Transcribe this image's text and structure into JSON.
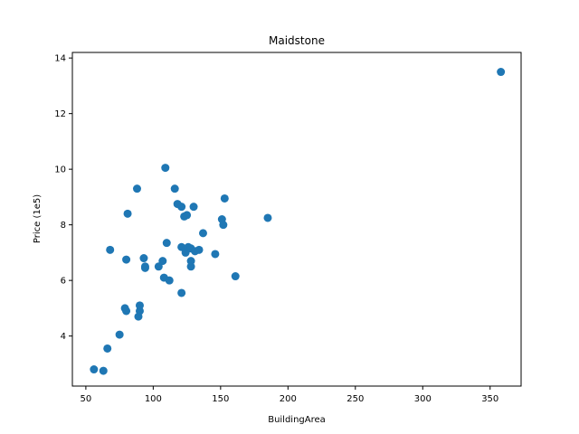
{
  "chart_data": {
    "type": "scatter",
    "title": "Maidstone",
    "xlabel": "BuildingArea",
    "ylabel": "Price (1e5)",
    "xlim": [
      40,
      373
    ],
    "ylim": [
      2.2,
      14.2
    ],
    "xticks": [
      50,
      100,
      150,
      200,
      250,
      300,
      350
    ],
    "yticks": [
      4,
      6,
      8,
      10,
      12,
      14
    ],
    "grid": false,
    "marker_color": "#1f77b4",
    "points": [
      {
        "x": 56,
        "y": 2.8
      },
      {
        "x": 63,
        "y": 2.75
      },
      {
        "x": 66,
        "y": 3.55
      },
      {
        "x": 68,
        "y": 7.1
      },
      {
        "x": 75,
        "y": 4.05
      },
      {
        "x": 79,
        "y": 5.0
      },
      {
        "x": 80,
        "y": 4.9
      },
      {
        "x": 80,
        "y": 6.75
      },
      {
        "x": 81,
        "y": 8.4
      },
      {
        "x": 88,
        "y": 9.3
      },
      {
        "x": 89,
        "y": 4.7
      },
      {
        "x": 90,
        "y": 4.9
      },
      {
        "x": 90,
        "y": 5.1
      },
      {
        "x": 93,
        "y": 6.8
      },
      {
        "x": 94,
        "y": 6.45
      },
      {
        "x": 94,
        "y": 6.5
      },
      {
        "x": 104,
        "y": 6.5
      },
      {
        "x": 107,
        "y": 6.7
      },
      {
        "x": 108,
        "y": 6.1
      },
      {
        "x": 109,
        "y": 10.05
      },
      {
        "x": 110,
        "y": 7.35
      },
      {
        "x": 112,
        "y": 6.0
      },
      {
        "x": 116,
        "y": 9.3
      },
      {
        "x": 118,
        "y": 8.75
      },
      {
        "x": 121,
        "y": 8.65
      },
      {
        "x": 121,
        "y": 5.55
      },
      {
        "x": 121,
        "y": 7.2
      },
      {
        "x": 123,
        "y": 8.3
      },
      {
        "x": 124,
        "y": 7.0
      },
      {
        "x": 125,
        "y": 8.35
      },
      {
        "x": 126,
        "y": 7.2
      },
      {
        "x": 128,
        "y": 6.5
      },
      {
        "x": 128,
        "y": 6.7
      },
      {
        "x": 128,
        "y": 7.15
      },
      {
        "x": 130,
        "y": 8.65
      },
      {
        "x": 131,
        "y": 7.05
      },
      {
        "x": 134,
        "y": 7.1
      },
      {
        "x": 137,
        "y": 7.7
      },
      {
        "x": 146,
        "y": 6.95
      },
      {
        "x": 151,
        "y": 8.2
      },
      {
        "x": 152,
        "y": 8.0
      },
      {
        "x": 153,
        "y": 8.95
      },
      {
        "x": 161,
        "y": 6.15
      },
      {
        "x": 185,
        "y": 8.25
      },
      {
        "x": 358,
        "y": 13.5
      }
    ]
  }
}
